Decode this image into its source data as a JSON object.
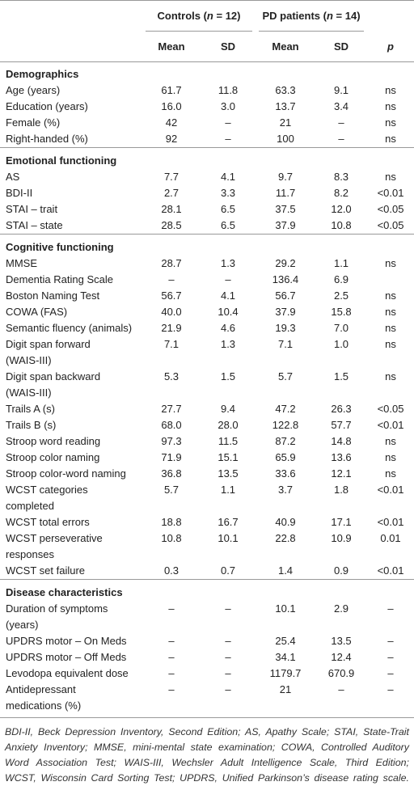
{
  "header": {
    "groups": [
      {
        "parts": [
          "Controls (",
          "n",
          " = 12)"
        ]
      },
      {
        "parts": [
          "PD patients (",
          "n",
          " = 14)"
        ]
      }
    ],
    "columns": [
      "Mean",
      "SD",
      "Mean",
      "SD",
      "p"
    ]
  },
  "sections": [
    {
      "title": "Demographics",
      "rows": [
        [
          "Age (years)",
          "61.7",
          "11.8",
          "63.3",
          "9.1",
          "ns"
        ],
        [
          "Education (years)",
          "16.0",
          "3.0",
          "13.7",
          "3.4",
          "ns"
        ],
        [
          "Female (%)",
          "42",
          "–",
          "21",
          "–",
          "ns"
        ],
        [
          "Right-handed (%)",
          "92",
          "–",
          "100",
          "–",
          "ns"
        ]
      ]
    },
    {
      "title": "Emotional functioning",
      "rows": [
        [
          "AS",
          "7.7",
          "4.1",
          "9.7",
          "8.3",
          "ns"
        ],
        [
          "BDI-II",
          "2.7",
          "3.3",
          "11.7",
          "8.2",
          "<0.01"
        ],
        [
          "STAI – trait",
          "28.1",
          "6.5",
          "37.5",
          "12.0",
          "<0.05"
        ],
        [
          "STAI – state",
          "28.5",
          "6.5",
          "37.9",
          "10.8",
          "<0.05"
        ]
      ]
    },
    {
      "title": "Cognitive functioning",
      "rows": [
        [
          "MMSE",
          "28.7",
          "1.3",
          "29.2",
          "1.1",
          "ns"
        ],
        [
          "Dementia Rating Scale",
          "–",
          "–",
          "136.4",
          "6.9",
          null
        ],
        [
          "Boston Naming Test",
          "56.7",
          "4.1",
          "56.7",
          "2.5",
          "ns"
        ],
        [
          "COWA (FAS)",
          "40.0",
          "10.4",
          "37.9",
          "15.8",
          "ns"
        ],
        [
          "Semantic fluency (animals)",
          "21.9",
          "4.6",
          "19.3",
          "7.0",
          "ns"
        ],
        [
          "Digit span forward\n(WAIS-III)",
          "7.1",
          "1.3",
          "7.1",
          "1.0",
          "ns"
        ],
        [
          "Digit span backward\n(WAIS-III)",
          "5.3",
          "1.5",
          "5.7",
          "1.5",
          "ns"
        ],
        [
          "Trails A (s)",
          "27.7",
          "9.4",
          "47.2",
          "26.3",
          "<0.05"
        ],
        [
          "Trails B (s)",
          "68.0",
          "28.0",
          "122.8",
          "57.7",
          "<0.01"
        ],
        [
          "Stroop word reading",
          "97.3",
          "11.5",
          "87.2",
          "14.8",
          "ns"
        ],
        [
          "Stroop color naming",
          "71.9",
          "15.1",
          "65.9",
          "13.6",
          "ns"
        ],
        [
          "Stroop color-word naming",
          "36.8",
          "13.5",
          "33.6",
          "12.1",
          "ns"
        ],
        [
          "WCST categories\ncompleted",
          "5.7",
          "1.1",
          "3.7",
          "1.8",
          "<0.01"
        ],
        [
          "WCST total errors",
          "18.8",
          "16.7",
          "40.9",
          "17.1",
          "<0.01"
        ],
        [
          "WCST perseverative\nresponses",
          "10.8",
          "10.1",
          "22.8",
          "10.9",
          "0.01"
        ],
        [
          "WCST set failure",
          "0.3",
          "0.7",
          "1.4",
          "0.9",
          "<0.01"
        ]
      ]
    },
    {
      "title": "Disease characteristics",
      "rows": [
        [
          "Duration of symptoms\n(years)",
          "–",
          "–",
          "10.1",
          "2.9",
          "–"
        ],
        [
          "UPDRS motor – On Meds",
          "–",
          "–",
          "25.4",
          "13.5",
          "–"
        ],
        [
          "UPDRS motor – Off Meds",
          "–",
          "–",
          "34.1",
          "12.4",
          "–"
        ],
        [
          "Levodopa equivalent dose",
          "–",
          "–",
          "1179.7",
          "670.9",
          "–"
        ],
        [
          "Antidepressant\nmedications (%)",
          "–",
          "–",
          "21",
          "–",
          "–"
        ]
      ]
    }
  ],
  "footnote": {
    "lines": [
      "BDI-II, Beck Depression Inventory, Second Edition; AS, Apathy Scale; STAI, State-Trait",
      "Anxiety Inventory; MMSE, mini-mental state examination; COWA, Controlled Auditory",
      "Word Association Test; WAIS-III, Wechsler Adult Intelligence Scale, Third Edition;",
      "WCST, Wisconsin Card Sorting Test; UPDRS, Unified Parkinson’s disease rating scale."
    ]
  }
}
